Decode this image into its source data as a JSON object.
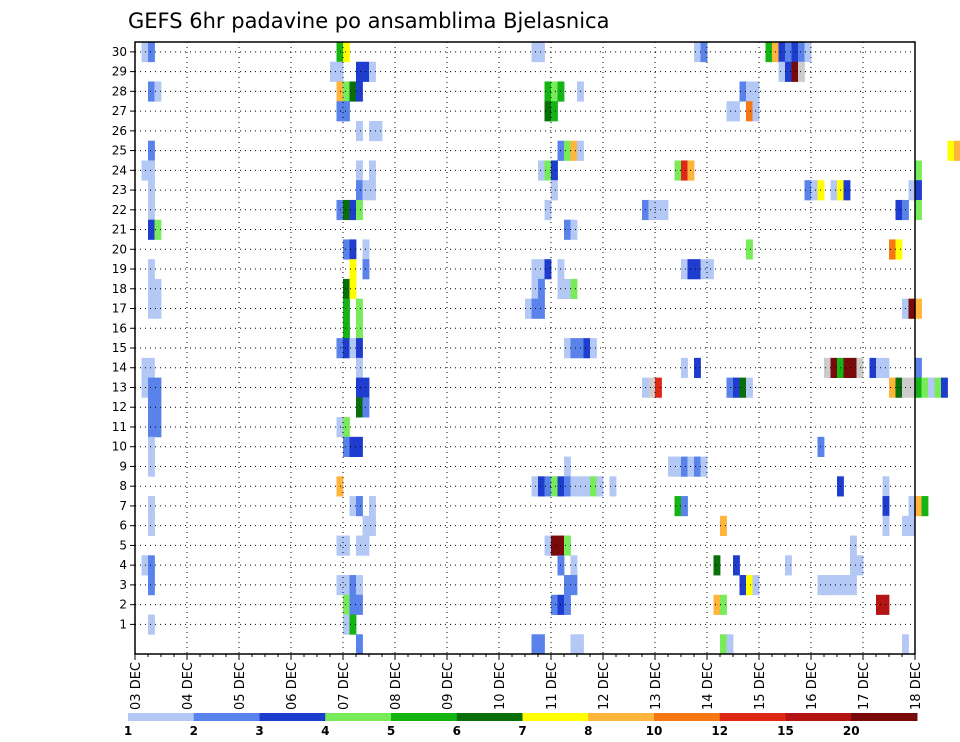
{
  "chart_data": {
    "type": "heatmap",
    "title": "GEFS 6hr padavine po ansamblima Bjelasnica",
    "xlabel": "",
    "ylabel": "",
    "x_ticks": [
      "03 DEC",
      "04 DEC",
      "05 DEC",
      "06 DEC",
      "07 DEC",
      "08 DEC",
      "09 DEC",
      "10 DEC",
      "11 DEC",
      "12 DEC",
      "13 DEC",
      "14 DEC",
      "15 DEC",
      "16 DEC",
      "17 DEC",
      "18 DEC"
    ],
    "y_ticks": [
      1,
      2,
      3,
      4,
      5,
      6,
      7,
      8,
      9,
      10,
      11,
      12,
      13,
      14,
      15,
      16,
      17,
      18,
      19,
      20,
      21,
      22,
      23,
      24,
      25,
      26,
      27,
      28,
      29,
      30
    ],
    "x_range": [
      "03 DEC 00Z",
      "18 DEC 00Z"
    ],
    "time_step_hours": 6,
    "grid": "dotted",
    "colorbar": {
      "placement": "bottom",
      "tick_labels": [
        "1",
        "2",
        "3",
        "4",
        "5",
        "6",
        "7",
        "8",
        "10",
        "12",
        "15",
        "20"
      ],
      "colors": [
        "#b4c8f5",
        "#5a82eb",
        "#1e3ccd",
        "#78eb5a",
        "#14b414",
        "#0a6e0a",
        "#ffff00",
        "#ffb43c",
        "#f57814",
        "#dc2814",
        "#b41414",
        "#780a0a"
      ]
    },
    "cells": [
      [
        30,
        1,
        1
      ],
      [
        30,
        2,
        2
      ],
      [
        30,
        31,
        5
      ],
      [
        30,
        32,
        7
      ],
      [
        30,
        61,
        1
      ],
      [
        30,
        62,
        1
      ],
      [
        30,
        86,
        1
      ],
      [
        30,
        87,
        2
      ],
      [
        30,
        97,
        5
      ],
      [
        30,
        98,
        8
      ],
      [
        30,
        99,
        3
      ],
      [
        30,
        100,
        2
      ],
      [
        30,
        101,
        3
      ],
      [
        30,
        102,
        2
      ],
      [
        30,
        103,
        1
      ],
      [
        29,
        30,
        1
      ],
      [
        29,
        31,
        1
      ],
      [
        29,
        34,
        3
      ],
      [
        29,
        35,
        3
      ],
      [
        29,
        36,
        1
      ],
      [
        29,
        99,
        1
      ],
      [
        29,
        100,
        3
      ],
      [
        29,
        101,
        12
      ],
      [
        29,
        102,
        13
      ],
      [
        28,
        2,
        2
      ],
      [
        28,
        3,
        1
      ],
      [
        28,
        31,
        8
      ],
      [
        28,
        32,
        4
      ],
      [
        28,
        33,
        6
      ],
      [
        28,
        34,
        3
      ],
      [
        28,
        63,
        5
      ],
      [
        28,
        64,
        4
      ],
      [
        28,
        65,
        5
      ],
      [
        28,
        68,
        1
      ],
      [
        28,
        93,
        2
      ],
      [
        28,
        94,
        1
      ],
      [
        28,
        95,
        1
      ],
      [
        27,
        31,
        2
      ],
      [
        27,
        32,
        2
      ],
      [
        27,
        63,
        6
      ],
      [
        27,
        64,
        5
      ],
      [
        27,
        91,
        1
      ],
      [
        27,
        92,
        1
      ],
      [
        27,
        94,
        9
      ],
      [
        27,
        95,
        1
      ],
      [
        26,
        34,
        1
      ],
      [
        26,
        36,
        1
      ],
      [
        26,
        37,
        1
      ],
      [
        25,
        2,
        2
      ],
      [
        25,
        65,
        2
      ],
      [
        25,
        66,
        4
      ],
      [
        25,
        67,
        8
      ],
      [
        25,
        68,
        1
      ],
      [
        25,
        125,
        7
      ],
      [
        25,
        126,
        8
      ],
      [
        25,
        127,
        8
      ],
      [
        25,
        128,
        2
      ],
      [
        24,
        1,
        1
      ],
      [
        24,
        2,
        1
      ],
      [
        24,
        34,
        1
      ],
      [
        24,
        36,
        1
      ],
      [
        24,
        62,
        1
      ],
      [
        24,
        63,
        4
      ],
      [
        24,
        64,
        3
      ],
      [
        24,
        83,
        4
      ],
      [
        24,
        84,
        10
      ],
      [
        24,
        85,
        8
      ],
      [
        24,
        120,
        4
      ],
      [
        23,
        2,
        1
      ],
      [
        23,
        34,
        2
      ],
      [
        23,
        35,
        1
      ],
      [
        23,
        36,
        1
      ],
      [
        23,
        64,
        1
      ],
      [
        23,
        103,
        2
      ],
      [
        23,
        104,
        1
      ],
      [
        23,
        105,
        7
      ],
      [
        23,
        107,
        1
      ],
      [
        23,
        108,
        7
      ],
      [
        23,
        109,
        3
      ],
      [
        23,
        119,
        1
      ],
      [
        23,
        120,
        3
      ],
      [
        22,
        2,
        1
      ],
      [
        22,
        31,
        2
      ],
      [
        22,
        32,
        6
      ],
      [
        22,
        33,
        3
      ],
      [
        22,
        34,
        4
      ],
      [
        22,
        63,
        1
      ],
      [
        22,
        78,
        2
      ],
      [
        22,
        79,
        1
      ],
      [
        22,
        80,
        1
      ],
      [
        22,
        81,
        1
      ],
      [
        22,
        117,
        3
      ],
      [
        22,
        118,
        2
      ],
      [
        22,
        120,
        4
      ],
      [
        21,
        2,
        3
      ],
      [
        21,
        3,
        4
      ],
      [
        21,
        66,
        2
      ],
      [
        21,
        67,
        1
      ],
      [
        20,
        32,
        2
      ],
      [
        20,
        33,
        3
      ],
      [
        20,
        35,
        1
      ],
      [
        20,
        94,
        4
      ],
      [
        20,
        116,
        9
      ],
      [
        20,
        117,
        7
      ],
      [
        19,
        2,
        1
      ],
      [
        19,
        33,
        7
      ],
      [
        19,
        35,
        2
      ],
      [
        19,
        61,
        1
      ],
      [
        19,
        62,
        1
      ],
      [
        19,
        63,
        3
      ],
      [
        19,
        65,
        1
      ],
      [
        19,
        84,
        1
      ],
      [
        19,
        85,
        3
      ],
      [
        19,
        86,
        3
      ],
      [
        19,
        87,
        1
      ],
      [
        19,
        88,
        1
      ],
      [
        18,
        2,
        1
      ],
      [
        18,
        3,
        1
      ],
      [
        18,
        32,
        6
      ],
      [
        18,
        33,
        7
      ],
      [
        18,
        61,
        1
      ],
      [
        18,
        62,
        2
      ],
      [
        18,
        65,
        1
      ],
      [
        18,
        66,
        1
      ],
      [
        18,
        67,
        4
      ],
      [
        17,
        2,
        1
      ],
      [
        17,
        3,
        1
      ],
      [
        17,
        32,
        5
      ],
      [
        17,
        34,
        4
      ],
      [
        17,
        60,
        1
      ],
      [
        17,
        61,
        2
      ],
      [
        17,
        62,
        2
      ],
      [
        17,
        118,
        1
      ],
      [
        17,
        119,
        12
      ],
      [
        17,
        120,
        8
      ],
      [
        16,
        32,
        5
      ],
      [
        16,
        34,
        4
      ],
      [
        15,
        31,
        2
      ],
      [
        15,
        32,
        3
      ],
      [
        15,
        33,
        1
      ],
      [
        15,
        34,
        3
      ],
      [
        15,
        66,
        1
      ],
      [
        15,
        67,
        2
      ],
      [
        15,
        68,
        2
      ],
      [
        15,
        69,
        3
      ],
      [
        15,
        70,
        1
      ],
      [
        14,
        1,
        1
      ],
      [
        14,
        2,
        1
      ],
      [
        14,
        34,
        1
      ],
      [
        14,
        84,
        1
      ],
      [
        14,
        86,
        3
      ],
      [
        14,
        106,
        13
      ],
      [
        14,
        107,
        12
      ],
      [
        14,
        108,
        5
      ],
      [
        14,
        109,
        12
      ],
      [
        14,
        110,
        12
      ],
      [
        14,
        111,
        13
      ],
      [
        14,
        113,
        3
      ],
      [
        14,
        114,
        1
      ],
      [
        14,
        115,
        1
      ],
      [
        14,
        120,
        2
      ],
      [
        13,
        1,
        1
      ],
      [
        13,
        2,
        2
      ],
      [
        13,
        3,
        2
      ],
      [
        13,
        34,
        3
      ],
      [
        13,
        35,
        3
      ],
      [
        13,
        78,
        1
      ],
      [
        13,
        79,
        13
      ],
      [
        13,
        80,
        10
      ],
      [
        13,
        91,
        2
      ],
      [
        13,
        92,
        3
      ],
      [
        13,
        93,
        6
      ],
      [
        13,
        94,
        1
      ],
      [
        13,
        116,
        8
      ],
      [
        13,
        117,
        6
      ],
      [
        13,
        118,
        13
      ],
      [
        13,
        119,
        13
      ],
      [
        13,
        120,
        5
      ],
      [
        13,
        121,
        4
      ],
      [
        13,
        122,
        1
      ],
      [
        13,
        123,
        4
      ],
      [
        13,
        124,
        3
      ],
      [
        12,
        2,
        2
      ],
      [
        12,
        3,
        2
      ],
      [
        12,
        34,
        6
      ],
      [
        12,
        35,
        2
      ],
      [
        11,
        2,
        2
      ],
      [
        11,
        3,
        2
      ],
      [
        11,
        31,
        1
      ],
      [
        11,
        32,
        4
      ],
      [
        10,
        2,
        1
      ],
      [
        10,
        32,
        2
      ],
      [
        10,
        33,
        3
      ],
      [
        10,
        34,
        3
      ],
      [
        10,
        105,
        2
      ],
      [
        9,
        2,
        1
      ],
      [
        9,
        66,
        1
      ],
      [
        9,
        82,
        1
      ],
      [
        9,
        83,
        1
      ],
      [
        9,
        84,
        2
      ],
      [
        9,
        85,
        1
      ],
      [
        9,
        86,
        2
      ],
      [
        9,
        87,
        1
      ],
      [
        8,
        31,
        8
      ],
      [
        8,
        61,
        1
      ],
      [
        8,
        62,
        3
      ],
      [
        8,
        63,
        2
      ],
      [
        8,
        64,
        4
      ],
      [
        8,
        65,
        3
      ],
      [
        8,
        66,
        2
      ],
      [
        8,
        67,
        1
      ],
      [
        8,
        68,
        1
      ],
      [
        8,
        69,
        1
      ],
      [
        8,
        70,
        4
      ],
      [
        8,
        71,
        1
      ],
      [
        8,
        73,
        1
      ],
      [
        8,
        108,
        3
      ],
      [
        8,
        115,
        1
      ],
      [
        7,
        2,
        1
      ],
      [
        7,
        33,
        1
      ],
      [
        7,
        34,
        2
      ],
      [
        7,
        36,
        1
      ],
      [
        7,
        83,
        5
      ],
      [
        7,
        84,
        2
      ],
      [
        7,
        115,
        3
      ],
      [
        7,
        119,
        1
      ],
      [
        7,
        120,
        8
      ],
      [
        7,
        121,
        5
      ],
      [
        6,
        2,
        1
      ],
      [
        6,
        35,
        1
      ],
      [
        6,
        36,
        1
      ],
      [
        6,
        90,
        8
      ],
      [
        6,
        115,
        1
      ],
      [
        6,
        118,
        1
      ],
      [
        6,
        119,
        1
      ],
      [
        5,
        31,
        1
      ],
      [
        5,
        32,
        1
      ],
      [
        5,
        34,
        1
      ],
      [
        5,
        35,
        1
      ],
      [
        5,
        63,
        1
      ],
      [
        5,
        64,
        12
      ],
      [
        5,
        65,
        12
      ],
      [
        5,
        66,
        4
      ],
      [
        5,
        110,
        1
      ],
      [
        4,
        1,
        1
      ],
      [
        4,
        2,
        2
      ],
      [
        4,
        65,
        2
      ],
      [
        4,
        67,
        1
      ],
      [
        4,
        89,
        6
      ],
      [
        4,
        92,
        3
      ],
      [
        4,
        100,
        1
      ],
      [
        4,
        110,
        1
      ],
      [
        4,
        111,
        1
      ],
      [
        3,
        2,
        2
      ],
      [
        3,
        31,
        1
      ],
      [
        3,
        32,
        1
      ],
      [
        3,
        33,
        2
      ],
      [
        3,
        34,
        1
      ],
      [
        3,
        66,
        2
      ],
      [
        3,
        67,
        2
      ],
      [
        3,
        93,
        3
      ],
      [
        3,
        94,
        7
      ],
      [
        3,
        95,
        1
      ],
      [
        3,
        105,
        1
      ],
      [
        3,
        106,
        1
      ],
      [
        3,
        107,
        1
      ],
      [
        3,
        108,
        1
      ],
      [
        3,
        109,
        1
      ],
      [
        3,
        110,
        1
      ],
      [
        2,
        32,
        4
      ],
      [
        2,
        33,
        2
      ],
      [
        2,
        34,
        2
      ],
      [
        2,
        64,
        2
      ],
      [
        2,
        65,
        3
      ],
      [
        2,
        66,
        2
      ],
      [
        2,
        89,
        8
      ],
      [
        2,
        90,
        4
      ],
      [
        2,
        114,
        11
      ],
      [
        2,
        115,
        11
      ],
      [
        1,
        2,
        1
      ],
      [
        1,
        32,
        1
      ],
      [
        1,
        33,
        5
      ],
      [
        0,
        34,
        2
      ],
      [
        0,
        61,
        2
      ],
      [
        0,
        62,
        2
      ],
      [
        0,
        67,
        1
      ],
      [
        0,
        68,
        1
      ],
      [
        0,
        90,
        4
      ],
      [
        0,
        91,
        1
      ],
      [
        0,
        118,
        1
      ]
    ]
  }
}
